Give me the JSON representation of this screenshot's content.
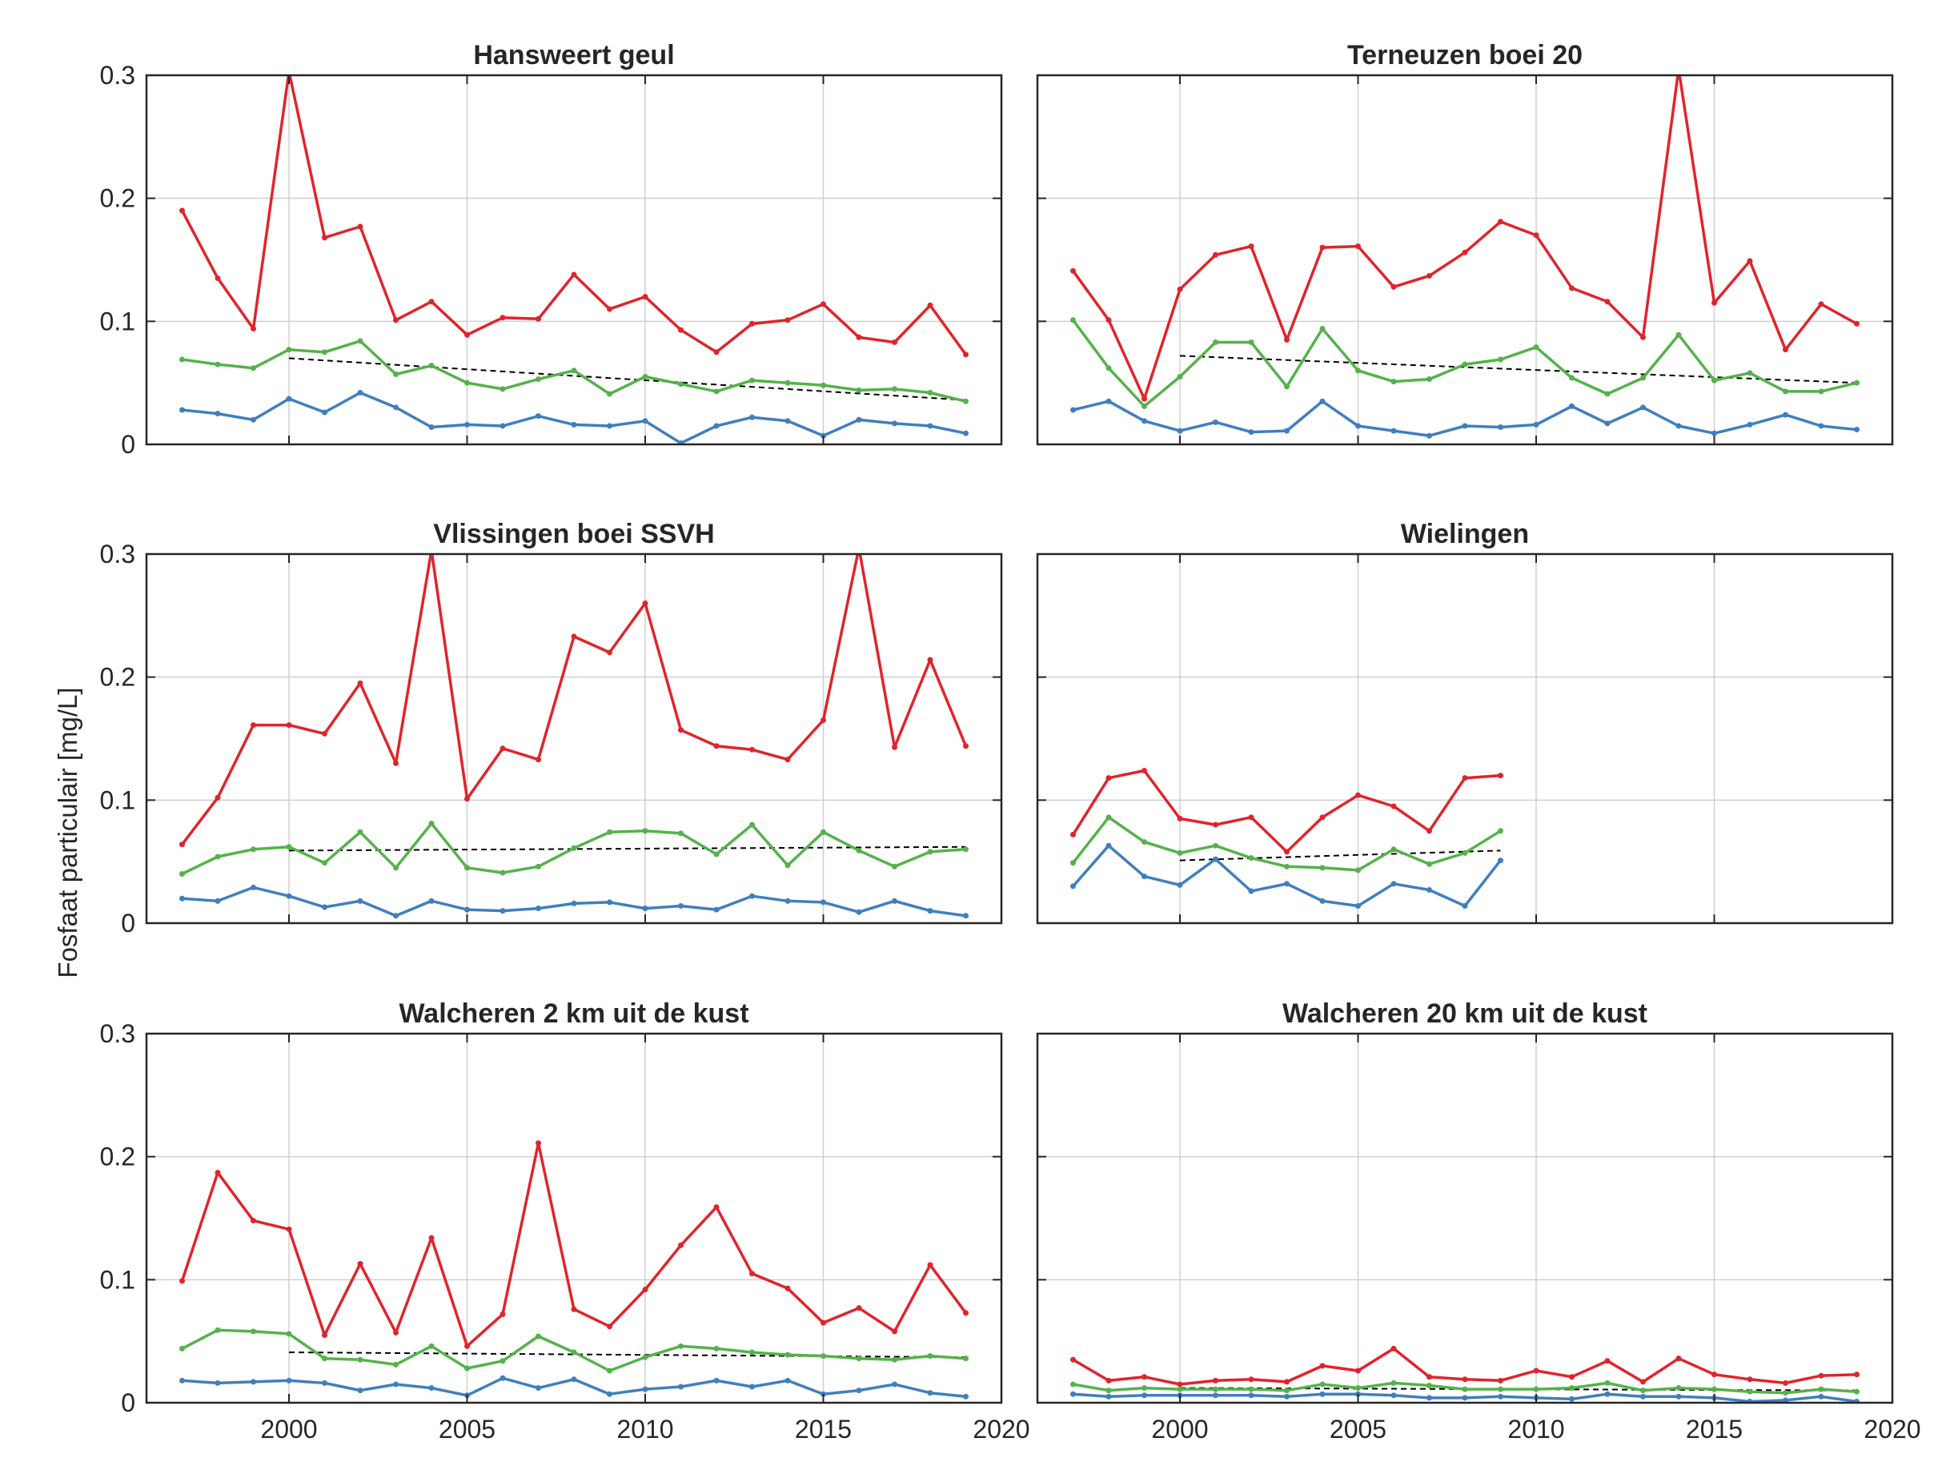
{
  "figure": {
    "ylabel": "Fosfaat particulair [mg/L]",
    "colors": {
      "red": "#e0242b",
      "green": "#55b24a",
      "blue": "#3f7fbf",
      "trend": "#000000",
      "grid": "#d0d0d0",
      "axis": "#262626"
    }
  },
  "chart_data": [
    {
      "type": "line",
      "title": "Hansweert geul",
      "xlim": [
        1996,
        2020
      ],
      "ylim": [
        0,
        0.3
      ],
      "grid": true,
      "x": [
        1997,
        1998,
        1999,
        2000,
        2001,
        2002,
        2003,
        2004,
        2005,
        2006,
        2007,
        2008,
        2009,
        2010,
        2011,
        2012,
        2013,
        2014,
        2015,
        2016,
        2017,
        2018,
        2019
      ],
      "series": [
        {
          "color": "red",
          "values": [
            0.19,
            0.135,
            0.094,
            0.303,
            0.168,
            0.177,
            0.101,
            0.116,
            0.089,
            0.103,
            0.102,
            0.138,
            0.11,
            0.12,
            0.093,
            0.075,
            0.098,
            0.101,
            0.114,
            0.087,
            0.083,
            0.113,
            0.073
          ]
        },
        {
          "color": "green",
          "values": [
            0.069,
            0.065,
            0.062,
            0.077,
            0.075,
            0.084,
            0.057,
            0.064,
            0.05,
            0.045,
            0.053,
            0.06,
            0.041,
            0.055,
            0.049,
            0.043,
            0.052,
            0.05,
            0.048,
            0.044,
            0.045,
            0.042,
            0.035
          ]
        },
        {
          "color": "blue",
          "values": [
            0.028,
            0.025,
            0.02,
            0.037,
            0.026,
            0.042,
            0.03,
            0.014,
            0.016,
            0.015,
            0.023,
            0.016,
            0.015,
            0.019,
            0.001,
            0.015,
            0.022,
            0.019,
            0.007,
            0.02,
            0.017,
            0.015,
            0.009
          ]
        }
      ],
      "trend": {
        "x": [
          2000,
          2019
        ],
        "y": [
          0.07,
          0.036
        ]
      }
    },
    {
      "type": "line",
      "title": "Terneuzen boei 20",
      "xlim": [
        1996,
        2020
      ],
      "ylim": [
        0,
        0.3
      ],
      "grid": true,
      "x": [
        1997,
        1998,
        1999,
        2000,
        2001,
        2002,
        2003,
        2004,
        2005,
        2006,
        2007,
        2008,
        2009,
        2010,
        2011,
        2012,
        2013,
        2014,
        2015,
        2016,
        2017,
        2018,
        2019
      ],
      "series": [
        {
          "color": "red",
          "values": [
            0.141,
            0.101,
            0.037,
            0.126,
            0.154,
            0.161,
            0.085,
            0.16,
            0.161,
            0.128,
            0.137,
            0.156,
            0.181,
            0.17,
            0.127,
            0.116,
            0.087,
            0.305,
            0.115,
            0.149,
            0.077,
            0.114,
            0.098
          ]
        },
        {
          "color": "green",
          "values": [
            0.101,
            0.062,
            0.031,
            0.055,
            0.083,
            0.083,
            0.047,
            0.094,
            0.06,
            0.051,
            0.053,
            0.065,
            0.069,
            0.079,
            0.054,
            0.041,
            0.054,
            0.089,
            0.052,
            0.058,
            0.043,
            0.043,
            0.05
          ]
        },
        {
          "color": "blue",
          "values": [
            0.028,
            0.035,
            0.019,
            0.011,
            0.018,
            0.01,
            0.011,
            0.035,
            0.015,
            0.011,
            0.007,
            0.015,
            0.014,
            0.016,
            0.031,
            0.017,
            0.03,
            0.015,
            0.009,
            0.016,
            0.024,
            0.015,
            0.012
          ]
        }
      ],
      "trend": {
        "x": [
          2000,
          2019
        ],
        "y": [
          0.072,
          0.05
        ]
      }
    },
    {
      "type": "line",
      "title": "Vlissingen boei SSVH",
      "xlim": [
        1996,
        2020
      ],
      "ylim": [
        0,
        0.3
      ],
      "grid": true,
      "x": [
        1997,
        1998,
        1999,
        2000,
        2001,
        2002,
        2003,
        2004,
        2005,
        2006,
        2007,
        2008,
        2009,
        2010,
        2011,
        2012,
        2013,
        2014,
        2015,
        2016,
        2017,
        2018,
        2019
      ],
      "series": [
        {
          "color": "red",
          "values": [
            0.064,
            0.102,
            0.161,
            0.161,
            0.154,
            0.195,
            0.13,
            0.303,
            0.101,
            0.142,
            0.133,
            0.233,
            0.22,
            0.26,
            0.157,
            0.144,
            0.141,
            0.133,
            0.165,
            0.305,
            0.143,
            0.214,
            0.144
          ]
        },
        {
          "color": "green",
          "values": [
            0.04,
            0.054,
            0.06,
            0.062,
            0.049,
            0.074,
            0.045,
            0.081,
            0.045,
            0.041,
            0.046,
            0.061,
            0.074,
            0.075,
            0.073,
            0.056,
            0.08,
            0.047,
            0.074,
            0.059,
            0.046,
            0.058,
            0.06
          ]
        },
        {
          "color": "blue",
          "values": [
            0.02,
            0.018,
            0.029,
            0.022,
            0.013,
            0.018,
            0.006,
            0.018,
            0.011,
            0.01,
            0.012,
            0.016,
            0.017,
            0.012,
            0.014,
            0.011,
            0.022,
            0.018,
            0.017,
            0.009,
            0.018,
            0.01,
            0.006
          ]
        }
      ],
      "trend": {
        "x": [
          2000,
          2019
        ],
        "y": [
          0.059,
          0.062
        ]
      }
    },
    {
      "type": "line",
      "title": "Wielingen",
      "xlim": [
        1996,
        2020
      ],
      "ylim": [
        0,
        0.3
      ],
      "grid": true,
      "x": [
        1997,
        1998,
        1999,
        2000,
        2001,
        2002,
        2003,
        2004,
        2005,
        2006,
        2007,
        2008,
        2009
      ],
      "series": [
        {
          "color": "red",
          "values": [
            0.072,
            0.118,
            0.124,
            0.085,
            0.08,
            0.086,
            0.058,
            0.086,
            0.104,
            0.095,
            0.075,
            0.118,
            0.12
          ]
        },
        {
          "color": "green",
          "values": [
            0.049,
            0.086,
            0.066,
            0.057,
            0.063,
            0.053,
            0.046,
            0.045,
            0.043,
            0.06,
            0.048,
            0.057,
            0.075
          ]
        },
        {
          "color": "blue",
          "values": [
            0.03,
            0.063,
            0.038,
            0.031,
            0.052,
            0.026,
            0.032,
            0.018,
            0.014,
            0.032,
            0.027,
            0.014,
            0.051
          ]
        }
      ],
      "trend": {
        "x": [
          2000,
          2009
        ],
        "y": [
          0.051,
          0.059
        ]
      }
    },
    {
      "type": "line",
      "title": "Walcheren 2 km uit de kust",
      "xlim": [
        1996,
        2020
      ],
      "ylim": [
        0,
        0.3
      ],
      "grid": true,
      "x": [
        1997,
        1998,
        1999,
        2000,
        2001,
        2002,
        2003,
        2004,
        2005,
        2006,
        2007,
        2008,
        2009,
        2010,
        2011,
        2012,
        2013,
        2014,
        2015,
        2016,
        2017,
        2018,
        2019
      ],
      "series": [
        {
          "color": "red",
          "values": [
            0.099,
            0.187,
            0.148,
            0.141,
            0.055,
            0.113,
            0.057,
            0.134,
            0.046,
            0.072,
            0.211,
            0.076,
            0.062,
            0.092,
            0.128,
            0.159,
            0.105,
            0.093,
            0.065,
            0.077,
            0.058,
            0.112,
            0.073
          ]
        },
        {
          "color": "green",
          "values": [
            0.044,
            0.059,
            0.058,
            0.056,
            0.036,
            0.035,
            0.031,
            0.046,
            0.028,
            0.034,
            0.054,
            0.041,
            0.026,
            0.037,
            0.046,
            0.044,
            0.041,
            0.039,
            0.038,
            0.036,
            0.035,
            0.038,
            0.036
          ]
        },
        {
          "color": "blue",
          "values": [
            0.018,
            0.016,
            0.017,
            0.018,
            0.016,
            0.01,
            0.015,
            0.012,
            0.006,
            0.02,
            0.012,
            0.019,
            0.007,
            0.011,
            0.013,
            0.018,
            0.013,
            0.018,
            0.007,
            0.01,
            0.015,
            0.008,
            0.005
          ]
        }
      ],
      "trend": {
        "x": [
          2000,
          2019
        ],
        "y": [
          0.041,
          0.037
        ]
      }
    },
    {
      "type": "line",
      "title": "Walcheren 20 km uit de kust",
      "xlim": [
        1996,
        2020
      ],
      "ylim": [
        0,
        0.3
      ],
      "grid": true,
      "x": [
        1997,
        1998,
        1999,
        2000,
        2001,
        2002,
        2003,
        2004,
        2005,
        2006,
        2007,
        2008,
        2009,
        2010,
        2011,
        2012,
        2013,
        2014,
        2015,
        2016,
        2017,
        2018,
        2019
      ],
      "series": [
        {
          "color": "red",
          "values": [
            0.035,
            0.018,
            0.021,
            0.015,
            0.018,
            0.019,
            0.017,
            0.03,
            0.026,
            0.044,
            0.021,
            0.019,
            0.018,
            0.026,
            0.021,
            0.034,
            0.017,
            0.036,
            0.023,
            0.019,
            0.016,
            0.022,
            0.023
          ]
        },
        {
          "color": "green",
          "values": [
            0.015,
            0.01,
            0.012,
            0.011,
            0.011,
            0.011,
            0.01,
            0.015,
            0.012,
            0.016,
            0.014,
            0.011,
            0.011,
            0.011,
            0.012,
            0.016,
            0.01,
            0.012,
            0.011,
            0.009,
            0.008,
            0.011,
            0.009
          ]
        },
        {
          "color": "blue",
          "values": [
            0.007,
            0.005,
            0.006,
            0.006,
            0.006,
            0.006,
            0.005,
            0.007,
            0.007,
            0.006,
            0.004,
            0.004,
            0.005,
            0.004,
            0.003,
            0.007,
            0.005,
            0.005,
            0.004,
            0.001,
            0.002,
            0.005,
            0.001
          ]
        }
      ],
      "trend": {
        "x": [
          2000,
          2019
        ],
        "y": [
          0.012,
          0.01
        ]
      }
    }
  ]
}
